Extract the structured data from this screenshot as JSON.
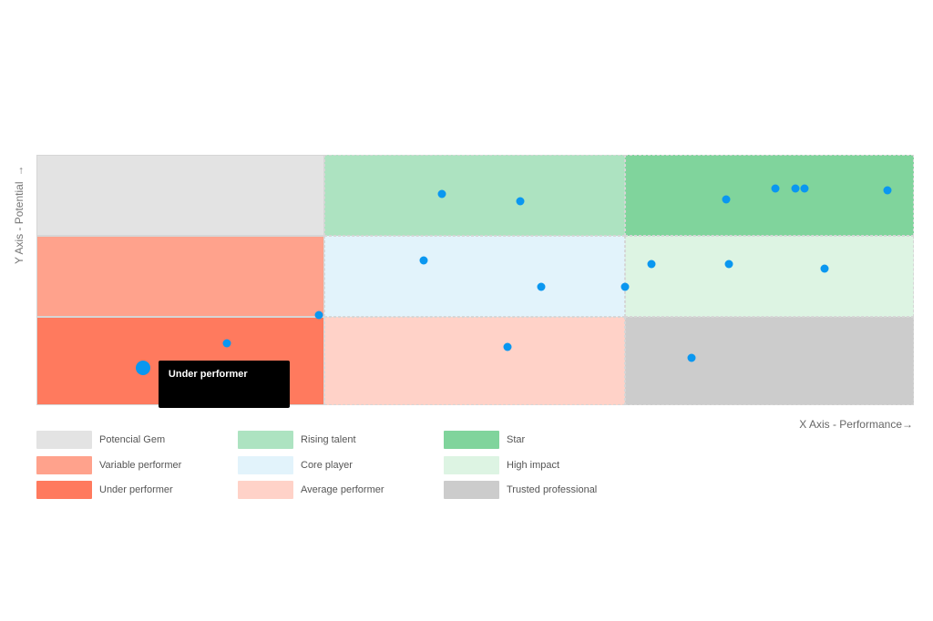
{
  "chart_data": {
    "type": "scatter",
    "title": "",
    "xlabel": "X Axis - Performance",
    "ylabel": "Y Axis - Potential",
    "x_arrow": "→",
    "y_arrow": "→",
    "xlim": [
      0,
      3
    ],
    "ylim": [
      0,
      3
    ],
    "quadrants": [
      {
        "name": "Potencial Gem",
        "col": 0,
        "row": 2,
        "color": "#e3e3e3"
      },
      {
        "name": "Rising talent",
        "col": 1,
        "row": 2,
        "color": "#ade3c1"
      },
      {
        "name": "Star",
        "col": 2,
        "row": 2,
        "color": "#80d49c"
      },
      {
        "name": "Variable performer",
        "col": 0,
        "row": 1,
        "color": "#ffa28c"
      },
      {
        "name": "Core player",
        "col": 1,
        "row": 1,
        "color": "#e2f3fb"
      },
      {
        "name": "High impact",
        "col": 2,
        "row": 1,
        "color": "#ddf4e3"
      },
      {
        "name": "Under performer",
        "col": 0,
        "row": 0,
        "color": "#ff7a5e"
      },
      {
        "name": "Average performer",
        "col": 1,
        "row": 0,
        "color": "#ffd2c8"
      },
      {
        "name": "Trusted professional",
        "col": 2,
        "row": 0,
        "color": "#cccccc"
      }
    ],
    "points": [
      {
        "x": 1.39,
        "y": 2.52
      },
      {
        "x": 1.65,
        "y": 2.43
      },
      {
        "x": 2.35,
        "y": 2.45
      },
      {
        "x": 2.52,
        "y": 2.58
      },
      {
        "x": 2.59,
        "y": 2.58
      },
      {
        "x": 2.62,
        "y": 2.58
      },
      {
        "x": 2.91,
        "y": 2.56
      },
      {
        "x": 1.33,
        "y": 1.7
      },
      {
        "x": 1.72,
        "y": 1.37
      },
      {
        "x": 2.0,
        "y": 1.37
      },
      {
        "x": 2.09,
        "y": 1.65
      },
      {
        "x": 2.36,
        "y": 1.65
      },
      {
        "x": 2.69,
        "y": 1.6
      },
      {
        "x": 0.98,
        "y": 1.02
      },
      {
        "x": 1.61,
        "y": 0.66
      },
      {
        "x": 2.23,
        "y": 0.54
      },
      {
        "x": 0.66,
        "y": 0.7
      },
      {
        "x": 0.37,
        "y": 0.42,
        "highlighted": true
      }
    ],
    "tooltip": "Under performer",
    "point_color": "#0a97f0"
  },
  "legend": [
    {
      "label": "Potencial Gem",
      "color": "#e3e3e3"
    },
    {
      "label": "Variable performer",
      "color": "#ffa28c"
    },
    {
      "label": "Under performer",
      "color": "#ff7a5e"
    },
    {
      "label": "Rising talent",
      "color": "#ade3c1"
    },
    {
      "label": "Core player",
      "color": "#e2f3fb"
    },
    {
      "label": "Average performer",
      "color": "#ffd2c8"
    },
    {
      "label": "Star",
      "color": "#80d49c"
    },
    {
      "label": "High impact",
      "color": "#ddf4e3"
    },
    {
      "label": "Trusted professional",
      "color": "#cccccc"
    }
  ]
}
